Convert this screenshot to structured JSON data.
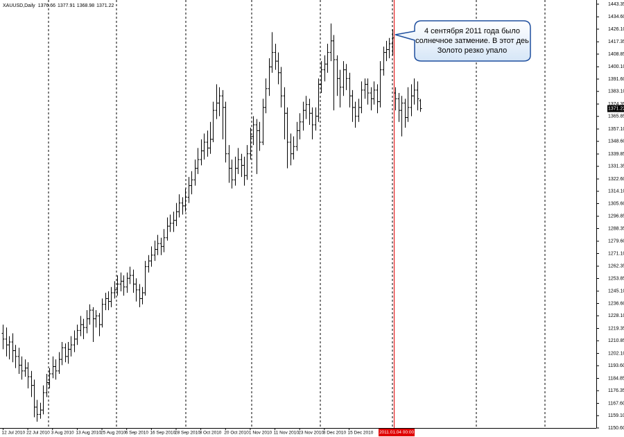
{
  "chart_data": {
    "type": "ohlc",
    "title": "XAUUSD,Daily",
    "cursor_label": "2011.01.04 00:00",
    "annotation": [
      "4 сентября 2011 года было",
      "солнечное затмение. В этот деь",
      "Золото резко упало"
    ],
    "color": "#000000",
    "open": [
      1216,
      1212,
      1208,
      1210,
      1204,
      1200,
      1194,
      1190,
      1192,
      1186,
      1180,
      1165,
      1160,
      1163,
      1175,
      1182,
      1188,
      1193,
      1190,
      1198,
      1206,
      1200,
      1205,
      1208,
      1212,
      1218,
      1222,
      1220,
      1226,
      1232,
      1226,
      1228,
      1222,
      1236,
      1240,
      1238,
      1244,
      1246,
      1250,
      1252,
      1248,
      1254,
      1256,
      1250,
      1246,
      1240,
      1244,
      1262,
      1266,
      1270,
      1274,
      1278,
      1276,
      1282,
      1290,
      1292,
      1294,
      1300,
      1306,
      1304,
      1310,
      1318,
      1322,
      1330,
      1336,
      1342,
      1348,
      1344,
      1350,
      1370,
      1375,
      1380,
      1372,
      1340,
      1330,
      1322,
      1330,
      1336,
      1332,
      1325,
      1340,
      1352,
      1360,
      1356,
      1348,
      1372,
      1385,
      1400,
      1410,
      1404,
      1396,
      1380,
      1368,
      1348,
      1340,
      1345,
      1356,
      1362,
      1370,
      1374,
      1368,
      1360,
      1366,
      1388,
      1398,
      1402,
      1410,
      1418,
      1405,
      1392,
      1386,
      1398,
      1392,
      1380,
      1372,
      1366,
      1372,
      1384,
      1388,
      1382,
      1378,
      1384,
      1376,
      1398,
      1410,
      1412,
      1416,
      1382,
      1378,
      1370,
      1375,
      1365,
      1372,
      1380,
      1384,
      1376.66
    ],
    "high": [
      1222,
      1220,
      1214,
      1216,
      1208,
      1206,
      1200,
      1198,
      1196,
      1190,
      1184,
      1170,
      1168,
      1180,
      1188,
      1192,
      1200,
      1198,
      1203,
      1210,
      1209,
      1210,
      1214,
      1218,
      1222,
      1228,
      1226,
      1232,
      1236,
      1234,
      1232,
      1230,
      1240,
      1244,
      1245,
      1248,
      1252,
      1256,
      1258,
      1256,
      1258,
      1262,
      1260,
      1254,
      1250,
      1248,
      1266,
      1270,
      1276,
      1280,
      1284,
      1282,
      1288,
      1296,
      1298,
      1300,
      1306,
      1312,
      1310,
      1316,
      1324,
      1328,
      1336,
      1344,
      1350,
      1354,
      1356,
      1362,
      1376,
      1388,
      1386,
      1384,
      1376,
      1346,
      1336,
      1338,
      1344,
      1340,
      1338,
      1346,
      1358,
      1366,
      1364,
      1362,
      1378,
      1392,
      1406,
      1424,
      1416,
      1410,
      1400,
      1386,
      1372,
      1354,
      1352,
      1362,
      1368,
      1376,
      1380,
      1378,
      1372,
      1372,
      1392,
      1404,
      1408,
      1416,
      1430,
      1422,
      1408,
      1398,
      1404,
      1402,
      1396,
      1384,
      1376,
      1378,
      1390,
      1392,
      1392,
      1386,
      1390,
      1388,
      1404,
      1414,
      1418,
      1420,
      1426,
      1386,
      1382,
      1380,
      1378,
      1386,
      1388,
      1392,
      1390,
      1377.91
    ],
    "low": [
      1205,
      1200,
      1198,
      1196,
      1192,
      1188,
      1184,
      1186,
      1178,
      1172,
      1158,
      1155,
      1157,
      1160,
      1172,
      1178,
      1185,
      1184,
      1188,
      1194,
      1196,
      1195,
      1200,
      1203,
      1208,
      1214,
      1212,
      1216,
      1222,
      1210,
      1220,
      1214,
      1220,
      1232,
      1232,
      1234,
      1240,
      1242,
      1245,
      1242,
      1244,
      1250,
      1244,
      1238,
      1234,
      1236,
      1242,
      1258,
      1262,
      1266,
      1270,
      1270,
      1272,
      1280,
      1286,
      1286,
      1290,
      1296,
      1298,
      1300,
      1306,
      1312,
      1318,
      1326,
      1332,
      1336,
      1338,
      1340,
      1348,
      1364,
      1366,
      1350,
      1334,
      1320,
      1316,
      1318,
      1326,
      1324,
      1318,
      1322,
      1336,
      1346,
      1326,
      1342,
      1346,
      1368,
      1380,
      1396,
      1398,
      1388,
      1372,
      1350,
      1330,
      1332,
      1336,
      1342,
      1350,
      1356,
      1364,
      1360,
      1350,
      1356,
      1362,
      1382,
      1390,
      1396,
      1404,
      1370,
      1380,
      1372,
      1380,
      1384,
      1372,
      1362,
      1358,
      1362,
      1368,
      1378,
      1374,
      1370,
      1374,
      1368,
      1372,
      1394,
      1404,
      1406,
      1408,
      1370,
      1362,
      1352,
      1358,
      1362,
      1366,
      1374,
      1370,
      1368.98
    ],
    "close": [
      1212,
      1208,
      1210,
      1204,
      1200,
      1194,
      1190,
      1192,
      1186,
      1180,
      1165,
      1160,
      1163,
      1175,
      1182,
      1188,
      1193,
      1190,
      1198,
      1206,
      1200,
      1205,
      1208,
      1212,
      1218,
      1222,
      1220,
      1226,
      1232,
      1226,
      1228,
      1222,
      1236,
      1240,
      1238,
      1244,
      1246,
      1250,
      1252,
      1248,
      1254,
      1256,
      1250,
      1246,
      1240,
      1244,
      1262,
      1266,
      1270,
      1274,
      1278,
      1276,
      1282,
      1290,
      1292,
      1294,
      1300,
      1306,
      1304,
      1310,
      1318,
      1322,
      1330,
      1336,
      1342,
      1348,
      1344,
      1350,
      1370,
      1375,
      1380,
      1372,
      1340,
      1330,
      1322,
      1330,
      1336,
      1332,
      1325,
      1340,
      1352,
      1360,
      1356,
      1348,
      1372,
      1385,
      1400,
      1410,
      1404,
      1396,
      1380,
      1368,
      1348,
      1340,
      1345,
      1356,
      1362,
      1370,
      1374,
      1368,
      1360,
      1366,
      1388,
      1398,
      1402,
      1410,
      1418,
      1405,
      1392,
      1386,
      1398,
      1392,
      1380,
      1372,
      1366,
      1372,
      1384,
      1388,
      1382,
      1378,
      1384,
      1376,
      1398,
      1410,
      1412,
      1416,
      1420,
      1378,
      1370,
      1375,
      1365,
      1372,
      1380,
      1384,
      1378,
      1371.22
    ],
    "xlim": [
      -1,
      192
    ],
    "xticks": [
      {
        "value": 0,
        "label": "12 Jul 2010"
      },
      {
        "value": 8,
        "label": "22 Jul 2010"
      },
      {
        "value": 16,
        "label": "3 Aug 2010"
      },
      {
        "value": 24,
        "label": "13 Aug 2010"
      },
      {
        "value": 32,
        "label": "25 Aug 2010"
      },
      {
        "value": 40,
        "label": "6 Sep 2010"
      },
      {
        "value": 48,
        "label": "16 Sep 2010"
      },
      {
        "value": 56,
        "label": "28 Sep 2010"
      },
      {
        "value": 64,
        "label": "8 Oct 2010"
      },
      {
        "value": 72,
        "label": "20 Oct 2010"
      },
      {
        "value": 80,
        "label": "1 Nov 2010"
      },
      {
        "value": 88,
        "label": "11 Nov 2010"
      },
      {
        "value": 96,
        "label": "23 Nov 2010"
      },
      {
        "value": 104,
        "label": "3 Dec 2010"
      },
      {
        "value": 112,
        "label": "15 Dec 2010"
      }
    ],
    "ylim": [
      1150.6,
      1443.35
    ],
    "yticks": [
      1443.35,
      {
        "value": 1434.6,
        "label": "1434.60"
      },
      {
        "value": 1426.1,
        "label": "1426.10"
      },
      1417.35,
      1408.85,
      {
        "value": 1400.1,
        "label": "1400.10"
      },
      {
        "value": 1391.6,
        "label": "1391.60"
      },
      {
        "value": 1383.1,
        "label": "1383.10"
      },
      1374.35,
      1365.85,
      {
        "value": 1357.1,
        "label": "1357.10"
      },
      {
        "value": 1348.6,
        "label": "1348.60"
      },
      1339.85,
      1331.35,
      {
        "value": 1322.6,
        "label": "1322.60"
      },
      {
        "value": 1314.1,
        "label": "1314.10"
      },
      {
        "value": 1305.6,
        "label": "1305.60"
      },
      1296.85,
      1288.35,
      {
        "value": 1279.6,
        "label": "1279.60"
      },
      {
        "value": 1271.1,
        "label": "1271.10"
      },
      1262.35,
      1253.85,
      {
        "value": 1245.1,
        "label": "1245.10"
      },
      {
        "value": 1236.6,
        "label": "1236.60"
      },
      {
        "value": 1228.1,
        "label": "1228.10"
      },
      1219.35,
      1210.85,
      {
        "value": 1202.1,
        "label": "1202.10"
      },
      {
        "value": 1193.6,
        "label": "1193.60"
      },
      1184.85,
      1176.35,
      {
        "value": 1167.6,
        "label": "1167.60"
      },
      {
        "value": 1159.1,
        "label": "1159.10"
      },
      {
        "value": 1150.6,
        "label": "1150.60"
      }
    ],
    "grid": false
  }
}
